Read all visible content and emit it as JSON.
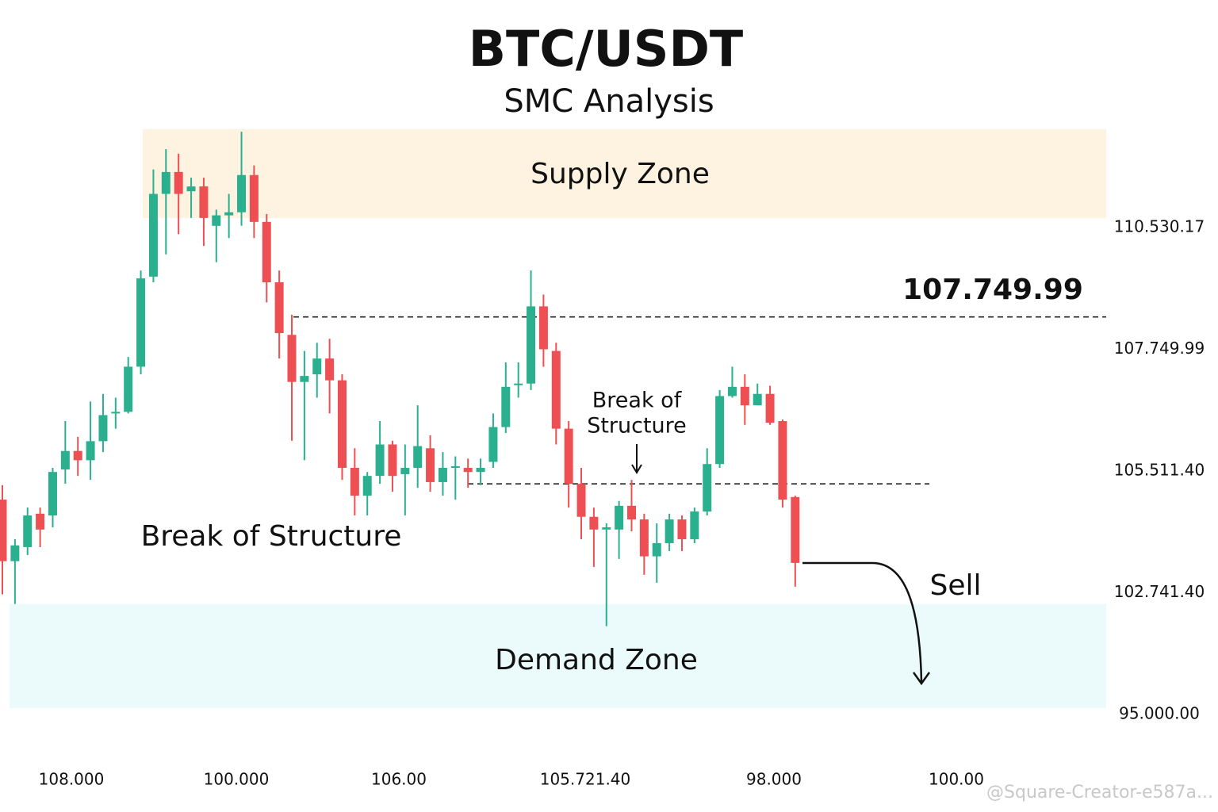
{
  "chart_data": {
    "type": "candlestick",
    "title": "BTC/USDT",
    "subtitle": "SMC Analysis",
    "up_color": "#2bb08f",
    "down_color": "#ee4f52",
    "ylim": [
      95000,
      112800
    ],
    "yticks": [
      {
        "value": 95000,
        "label": "95.000.00"
      },
      {
        "value": 102741.4,
        "label": "102.741.40"
      },
      {
        "value": 105511.4,
        "label": "105.511.40"
      },
      {
        "value": 107749.99,
        "label": "107.749.99"
      },
      {
        "value": 110530.17,
        "label": "110.530.17"
      }
    ],
    "x_labels": [
      "108.000",
      "100.000",
      "106.00",
      "105.721.40",
      "98.000",
      "100.00"
    ],
    "open": [
      104860,
      103460,
      103780,
      104540,
      104500,
      105540,
      105880,
      105710,
      106060,
      106570,
      106600,
      107430,
      109410,
      111300,
      111800,
      111360,
      111470,
      110570,
      110810,
      110880,
      111730,
      110660,
      109280,
      108080,
      107150,
      107290,
      107580,
      107180,
      105570,
      104950,
      105400,
      106000,
      105440,
      105570,
      105930,
      105260,
      105570,
      105570,
      105490,
      105680,
      106320,
      107090,
      107120,
      108730,
      107720,
      106290,
      105220,
      104470,
      104180,
      104180,
      104720,
      104410,
      103570,
      103870,
      104410,
      103960,
      104590,
      105640,
      106890,
      107060,
      106720,
      106930,
      106430,
      104920
    ],
    "high": [
      105190,
      103960,
      104680,
      104680,
      105570,
      106430,
      106140,
      106790,
      106930,
      106860,
      107610,
      109550,
      111860,
      112320,
      112220,
      111670,
      111670,
      110940,
      111300,
      112720,
      111950,
      110840,
      109550,
      108540,
      107720,
      107900,
      107990,
      107290,
      105930,
      105490,
      106430,
      106070,
      106000,
      106720,
      106170,
      105860,
      105780,
      105740,
      105740,
      106570,
      107510,
      107510,
      109550,
      109000,
      107900,
      106430,
      105570,
      104680,
      104320,
      104830,
      105310,
      104540,
      104320,
      104540,
      104500,
      104680,
      105930,
      107000,
      107430,
      107290,
      107120,
      107080,
      106460,
      104950
    ],
    "low": [
      102640,
      102030,
      103600,
      103780,
      104230,
      105220,
      105400,
      105310,
      105860,
      106290,
      106570,
      107290,
      109280,
      109920,
      110380,
      110750,
      110110,
      109740,
      110290,
      110570,
      110290,
      108820,
      107580,
      106070,
      105710,
      106860,
      106570,
      105310,
      104500,
      104500,
      105220,
      105040,
      104500,
      105130,
      105040,
      104950,
      104860,
      105130,
      105190,
      105570,
      106210,
      106860,
      107000,
      107430,
      106000,
      104680,
      103960,
      103330,
      100620,
      103510,
      104140,
      103150,
      102970,
      103690,
      103690,
      103870,
      104500,
      105570,
      106860,
      106360,
      106720,
      106360,
      104680,
      102880
    ],
    "close": [
      103460,
      103820,
      104500,
      104180,
      105490,
      105880,
      105710,
      106060,
      106540,
      106600,
      107430,
      109370,
      111300,
      111800,
      111300,
      111470,
      110750,
      110810,
      110880,
      111730,
      110660,
      109280,
      108120,
      107150,
      107260,
      107580,
      107180,
      105570,
      104950,
      105400,
      106000,
      105400,
      105570,
      105970,
      105260,
      105570,
      105600,
      105490,
      105570,
      106320,
      107060,
      107120,
      108730,
      107750,
      106290,
      105220,
      104470,
      104180,
      104230,
      104720,
      104410,
      103570,
      103870,
      104410,
      103960,
      104590,
      105640,
      106890,
      107060,
      106720,
      106930,
      106400,
      104860,
      103420
    ],
    "supply_zone": {
      "label": "Supply Zone",
      "range": [
        110750,
        112780
      ],
      "color": "#fdf3e0"
    },
    "demand_zone": {
      "label": "Demand Zone",
      "range": [
        95400,
        102030
      ],
      "color": "#ebfbfb"
    },
    "levels": [
      108490,
      105220
    ],
    "resistance_label": "107.749.99",
    "annotations": {
      "break_of_structure": "Break of Structure",
      "break_of_structure_small": [
        "Break of",
        "Structure"
      ],
      "sell": "Sell"
    },
    "watermark": "@Square-Creator-e587a..."
  }
}
